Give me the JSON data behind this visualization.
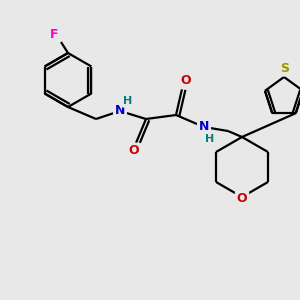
{
  "background_color": "#e8e8e8",
  "bond_color": "#000000",
  "atom_colors": {
    "F": "#ff00cc",
    "N": "#0000cc",
    "O": "#cc0000",
    "S": "#999900",
    "H": "#008080",
    "C": "#000000"
  },
  "figsize": [
    3.0,
    3.0
  ],
  "dpi": 100,
  "bond_lw": 1.6,
  "font_size": 8.5
}
